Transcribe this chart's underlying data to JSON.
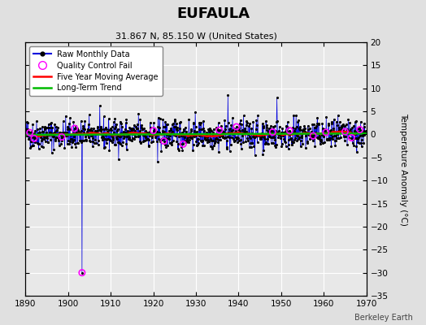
{
  "title": "EUFAULA",
  "subtitle": "31.867 N, 85.150 W (United States)",
  "ylabel": "Temperature Anomaly (°C)",
  "credit": "Berkeley Earth",
  "xlim": [
    1890,
    1970
  ],
  "ylim": [
    -35,
    20
  ],
  "yticks": [
    -35,
    -30,
    -25,
    -20,
    -15,
    -10,
    -5,
    0,
    5,
    10,
    15,
    20
  ],
  "xticks": [
    1890,
    1900,
    1910,
    1920,
    1930,
    1940,
    1950,
    1960,
    1970
  ],
  "bg_color": "#e0e0e0",
  "plot_bg_color": "#e8e8e8",
  "grid_color": "white",
  "raw_color": "#0000dd",
  "dot_color": "black",
  "qc_color": "magenta",
  "ma_color": "red",
  "trend_color": "#00bb00",
  "seed": 42,
  "n_months": 960,
  "start_year": 1890,
  "outlier_year": 1903.25,
  "outlier_value": -30.0
}
